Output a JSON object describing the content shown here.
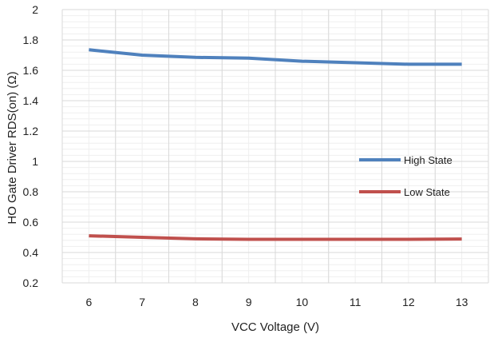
{
  "chart_data": {
    "type": "line",
    "title": "",
    "xlabel": "VCC  Voltage (V)",
    "ylabel": "HO Gate Driver RDS(on) (Ω)",
    "x": [
      6,
      7,
      8,
      9,
      10,
      11,
      12,
      13
    ],
    "xlim": [
      5.5,
      13.5
    ],
    "ylim": [
      0.2,
      2
    ],
    "yticks": [
      0.2,
      0.4,
      0.6,
      0.8,
      1,
      1.2,
      1.4,
      1.6,
      1.8,
      2
    ],
    "ytick_labels": [
      "0.2",
      "0.4",
      "0.6",
      "0.8",
      "1",
      "1.2",
      "1.4",
      "1.6",
      "1.8",
      "2"
    ],
    "xticks": [
      6,
      7,
      8,
      9,
      10,
      11,
      12,
      13
    ],
    "xtick_labels": [
      "6",
      "7",
      "8",
      "9",
      "10",
      "11",
      "12",
      "13"
    ],
    "grid": true,
    "legend_position": "right-middle",
    "series": [
      {
        "name": "High State",
        "color": "#4f81bd",
        "values": [
          1.735,
          1.7,
          1.685,
          1.68,
          1.66,
          1.65,
          1.64,
          1.64
        ]
      },
      {
        "name": "Low State",
        "color": "#c0504d",
        "values": [
          0.51,
          0.5,
          0.49,
          0.487,
          0.487,
          0.487,
          0.487,
          0.489
        ]
      }
    ],
    "colors": {
      "major_grid": "#d9d9d9",
      "minor_grid": "#efefef"
    }
  }
}
